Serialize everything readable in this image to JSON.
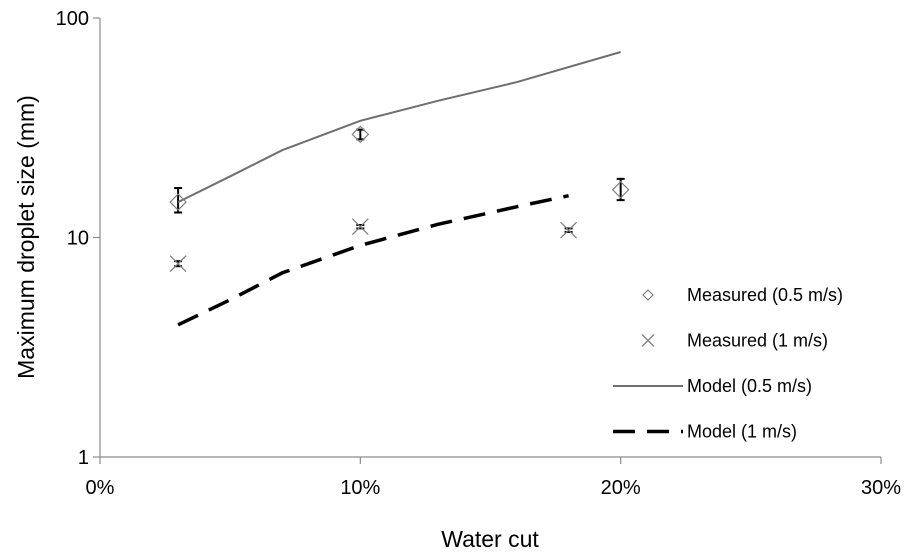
{
  "chart_data": {
    "type": "scatter",
    "title": "",
    "xlabel": "Water cut",
    "ylabel": "Maximum droplet size (mm)",
    "xlim": [
      0,
      30
    ],
    "ylim": [
      1,
      100
    ],
    "yscale": "log",
    "grid": false,
    "legend_position": "right",
    "x_ticks": [
      "0%",
      "10%",
      "20%",
      "30%"
    ],
    "x_tick_values": [
      0,
      10,
      20,
      30
    ],
    "y_ticks": [
      "1",
      "10",
      "100"
    ],
    "y_tick_values": [
      1,
      10,
      100
    ],
    "series": [
      {
        "name": "Measured (0.5 m/s)",
        "kind": "scatter",
        "marker": "diamond",
        "color": "#808080",
        "x": [
          3,
          10,
          20
        ],
        "y": [
          14.5,
          29.5,
          16.5
        ],
        "y_err_low": [
          13.0,
          28.0,
          14.8
        ],
        "y_err_high": [
          16.8,
          31.0,
          18.5
        ]
      },
      {
        "name": "Measured (1 m/s)",
        "kind": "scatter",
        "marker": "x",
        "color": "#808080",
        "x": [
          3,
          10,
          18
        ],
        "y": [
          7.6,
          11.2,
          10.8
        ],
        "y_err_low": [
          7.4,
          11.0,
          10.6
        ],
        "y_err_high": [
          7.8,
          11.4,
          11.0
        ]
      },
      {
        "name": "Model (0.5 m/s)",
        "kind": "line",
        "style": "solid",
        "color": "#6e6e6e",
        "x": [
          3,
          5,
          7,
          10,
          13,
          16,
          20
        ],
        "y": [
          14.5,
          19.0,
          25.0,
          34.0,
          42.0,
          51.0,
          70.0
        ]
      },
      {
        "name": "Model (1 m/s)",
        "kind": "line",
        "style": "dashed",
        "color": "#000000",
        "x": [
          3,
          5,
          7,
          10,
          13,
          16,
          18
        ],
        "y": [
          4.0,
          5.2,
          6.9,
          9.2,
          11.5,
          13.8,
          15.5
        ]
      }
    ]
  }
}
